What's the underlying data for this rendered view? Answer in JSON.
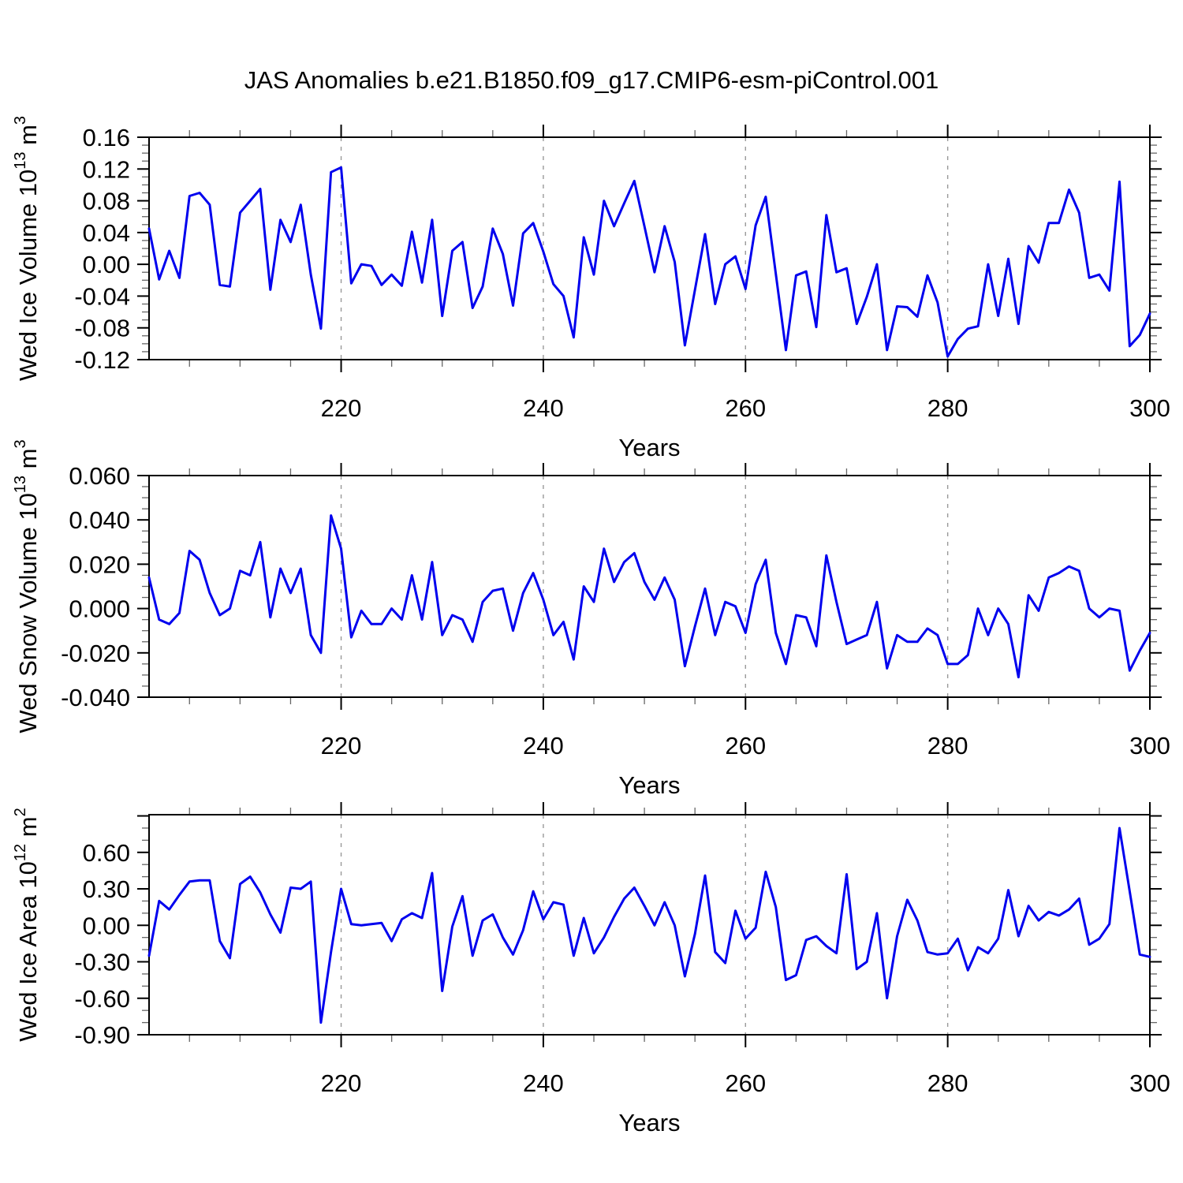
{
  "title": "JAS Anomalies b.e21.B1850.f09_g17.CMIP6-esm-piControl.001",
  "xlabel": "Years",
  "colors": {
    "line": "#0000ee",
    "grid": "#999999",
    "frame": "#000000",
    "minor_tick": "#666666",
    "text": "#000000"
  },
  "x_axis": {
    "start_year": 201,
    "end_year": 300,
    "major_ticks": [
      220,
      240,
      260,
      280,
      300
    ],
    "major_tick_labels": [
      "220",
      "240",
      "260",
      "280",
      "300"
    ],
    "minor_step": 5,
    "gridline_years": [
      220,
      240,
      260,
      280
    ]
  },
  "chart_data": [
    {
      "type": "line",
      "name": "wed-ice-volume",
      "ylabel_prefix": "Wed Ice Volume 10",
      "ylabel_exp": "13",
      "ylabel_unit": " m",
      "ylabel_unit_exp": "3",
      "ylim": [
        -0.12,
        0.16
      ],
      "ytick_step": 0.04,
      "ytick_minor_step": 0.01,
      "ytick_label_values": [
        0.16,
        0.12,
        0.08,
        0.04,
        0.0,
        -0.04,
        -0.08,
        -0.12
      ],
      "ytick_label_texts": [
        "0.16",
        "0.12",
        "0.08",
        "0.04",
        "0.00",
        "-0.04",
        "-0.08",
        "-0.12"
      ],
      "x_start": 201,
      "values": [
        0.045,
        -0.019,
        0.017,
        -0.017,
        0.086,
        0.09,
        0.075,
        -0.026,
        -0.028,
        0.065,
        0.08,
        0.095,
        -0.032,
        0.056,
        0.028,
        0.075,
        -0.013,
        -0.081,
        0.116,
        0.122,
        -0.024,
        0.0,
        -0.002,
        -0.026,
        -0.013,
        -0.027,
        0.041,
        -0.023,
        0.056,
        -0.065,
        0.017,
        0.028,
        -0.055,
        -0.028,
        0.045,
        0.013,
        -0.052,
        0.039,
        0.052,
        0.016,
        -0.025,
        -0.04,
        -0.092,
        0.034,
        -0.013,
        0.08,
        0.048,
        0.077,
        0.105,
        0.048,
        -0.01,
        0.048,
        0.003,
        -0.102,
        -0.032,
        0.038,
        -0.05,
        0.0,
        0.01,
        -0.031,
        0.049,
        0.085,
        -0.012,
        -0.108,
        -0.014,
        -0.009,
        -0.079,
        0.062,
        -0.01,
        -0.005,
        -0.075,
        -0.041,
        0.0,
        -0.108,
        -0.053,
        -0.054,
        -0.066,
        -0.014,
        -0.048,
        -0.116,
        -0.094,
        -0.081,
        -0.078,
        0.0,
        -0.065,
        0.007,
        -0.075,
        0.023,
        0.002,
        0.052,
        0.052,
        0.094,
        0.065,
        -0.017,
        -0.013,
        -0.033,
        0.104,
        -0.103,
        -0.089,
        -0.062
      ]
    },
    {
      "type": "line",
      "name": "wed-snow-volume",
      "ylabel_prefix": "Wed Snow Volume 10",
      "ylabel_exp": "13",
      "ylabel_unit": " m",
      "ylabel_unit_exp": "3",
      "ylim": [
        -0.04,
        0.06
      ],
      "ytick_step": 0.02,
      "ytick_minor_step": 0.005,
      "ytick_label_values": [
        0.06,
        0.04,
        0.02,
        0.0,
        -0.02,
        -0.04
      ],
      "ytick_label_texts": [
        "0.060",
        "0.040",
        "0.020",
        "0.000",
        "-0.020",
        "-0.040"
      ],
      "x_start": 201,
      "values": [
        0.014,
        -0.005,
        -0.007,
        -0.002,
        0.026,
        0.022,
        0.007,
        -0.003,
        0.0,
        0.017,
        0.015,
        0.03,
        -0.004,
        0.018,
        0.007,
        0.018,
        -0.012,
        -0.02,
        0.042,
        0.027,
        -0.013,
        -0.001,
        -0.007,
        -0.007,
        0.0,
        -0.005,
        0.015,
        -0.005,
        0.021,
        -0.012,
        -0.003,
        -0.005,
        -0.015,
        0.003,
        0.008,
        0.009,
        -0.01,
        0.007,
        0.016,
        0.004,
        -0.012,
        -0.006,
        -0.023,
        0.01,
        0.003,
        0.027,
        0.012,
        0.021,
        0.025,
        0.012,
        0.004,
        0.014,
        0.004,
        -0.026,
        -0.008,
        0.009,
        -0.012,
        0.003,
        0.001,
        -0.011,
        0.011,
        0.022,
        -0.011,
        -0.025,
        -0.003,
        -0.004,
        -0.017,
        0.024,
        0.003,
        -0.016,
        -0.014,
        -0.012,
        0.003,
        -0.027,
        -0.012,
        -0.015,
        -0.015,
        -0.009,
        -0.012,
        -0.025,
        -0.025,
        -0.021,
        0.0,
        -0.012,
        0.0,
        -0.007,
        -0.031,
        0.006,
        -0.001,
        0.014,
        0.016,
        0.019,
        0.017,
        0.0,
        -0.004,
        0.0,
        -0.001,
        -0.028,
        -0.019,
        -0.011
      ]
    },
    {
      "type": "line",
      "name": "wed-ice-area",
      "ylabel_prefix": "Wed Ice Area 10",
      "ylabel_exp": "12",
      "ylabel_unit": " m",
      "ylabel_unit_exp": "2",
      "ylim": [
        -0.9,
        0.91
      ],
      "ytick_step": 0.3,
      "ytick_minor_step": 0.1,
      "ytick_label_values": [
        0.6,
        0.3,
        0.0,
        -0.3,
        -0.6,
        -0.9
      ],
      "ytick_label_texts": [
        "0.60",
        "0.30",
        "0.00",
        "-0.30",
        "-0.60",
        "-0.90"
      ],
      "x_start": 201,
      "values": [
        -0.25,
        0.2,
        0.13,
        0.25,
        0.36,
        0.37,
        0.37,
        -0.13,
        -0.27,
        0.34,
        0.4,
        0.27,
        0.09,
        -0.06,
        0.31,
        0.3,
        0.36,
        -0.8,
        -0.22,
        0.3,
        0.01,
        0.0,
        0.01,
        0.02,
        -0.13,
        0.05,
        0.1,
        0.06,
        0.43,
        -0.54,
        -0.01,
        0.24,
        -0.25,
        0.04,
        0.09,
        -0.1,
        -0.24,
        -0.04,
        0.28,
        0.05,
        0.19,
        0.17,
        -0.25,
        0.06,
        -0.23,
        -0.1,
        0.07,
        0.22,
        0.31,
        0.16,
        0.0,
        0.19,
        0.0,
        -0.42,
        -0.07,
        0.41,
        -0.22,
        -0.31,
        0.12,
        -0.11,
        -0.02,
        0.44,
        0.15,
        -0.45,
        -0.41,
        -0.12,
        -0.09,
        -0.17,
        -0.23,
        0.42,
        -0.36,
        -0.3,
        0.1,
        -0.6,
        -0.09,
        0.21,
        0.04,
        -0.22,
        -0.24,
        -0.23,
        -0.11,
        -0.37,
        -0.18,
        -0.23,
        -0.11,
        0.29,
        -0.09,
        0.16,
        0.04,
        0.11,
        0.08,
        0.13,
        0.22,
        -0.16,
        -0.11,
        0.01,
        0.8,
        0.28,
        -0.24,
        -0.26
      ]
    }
  ]
}
